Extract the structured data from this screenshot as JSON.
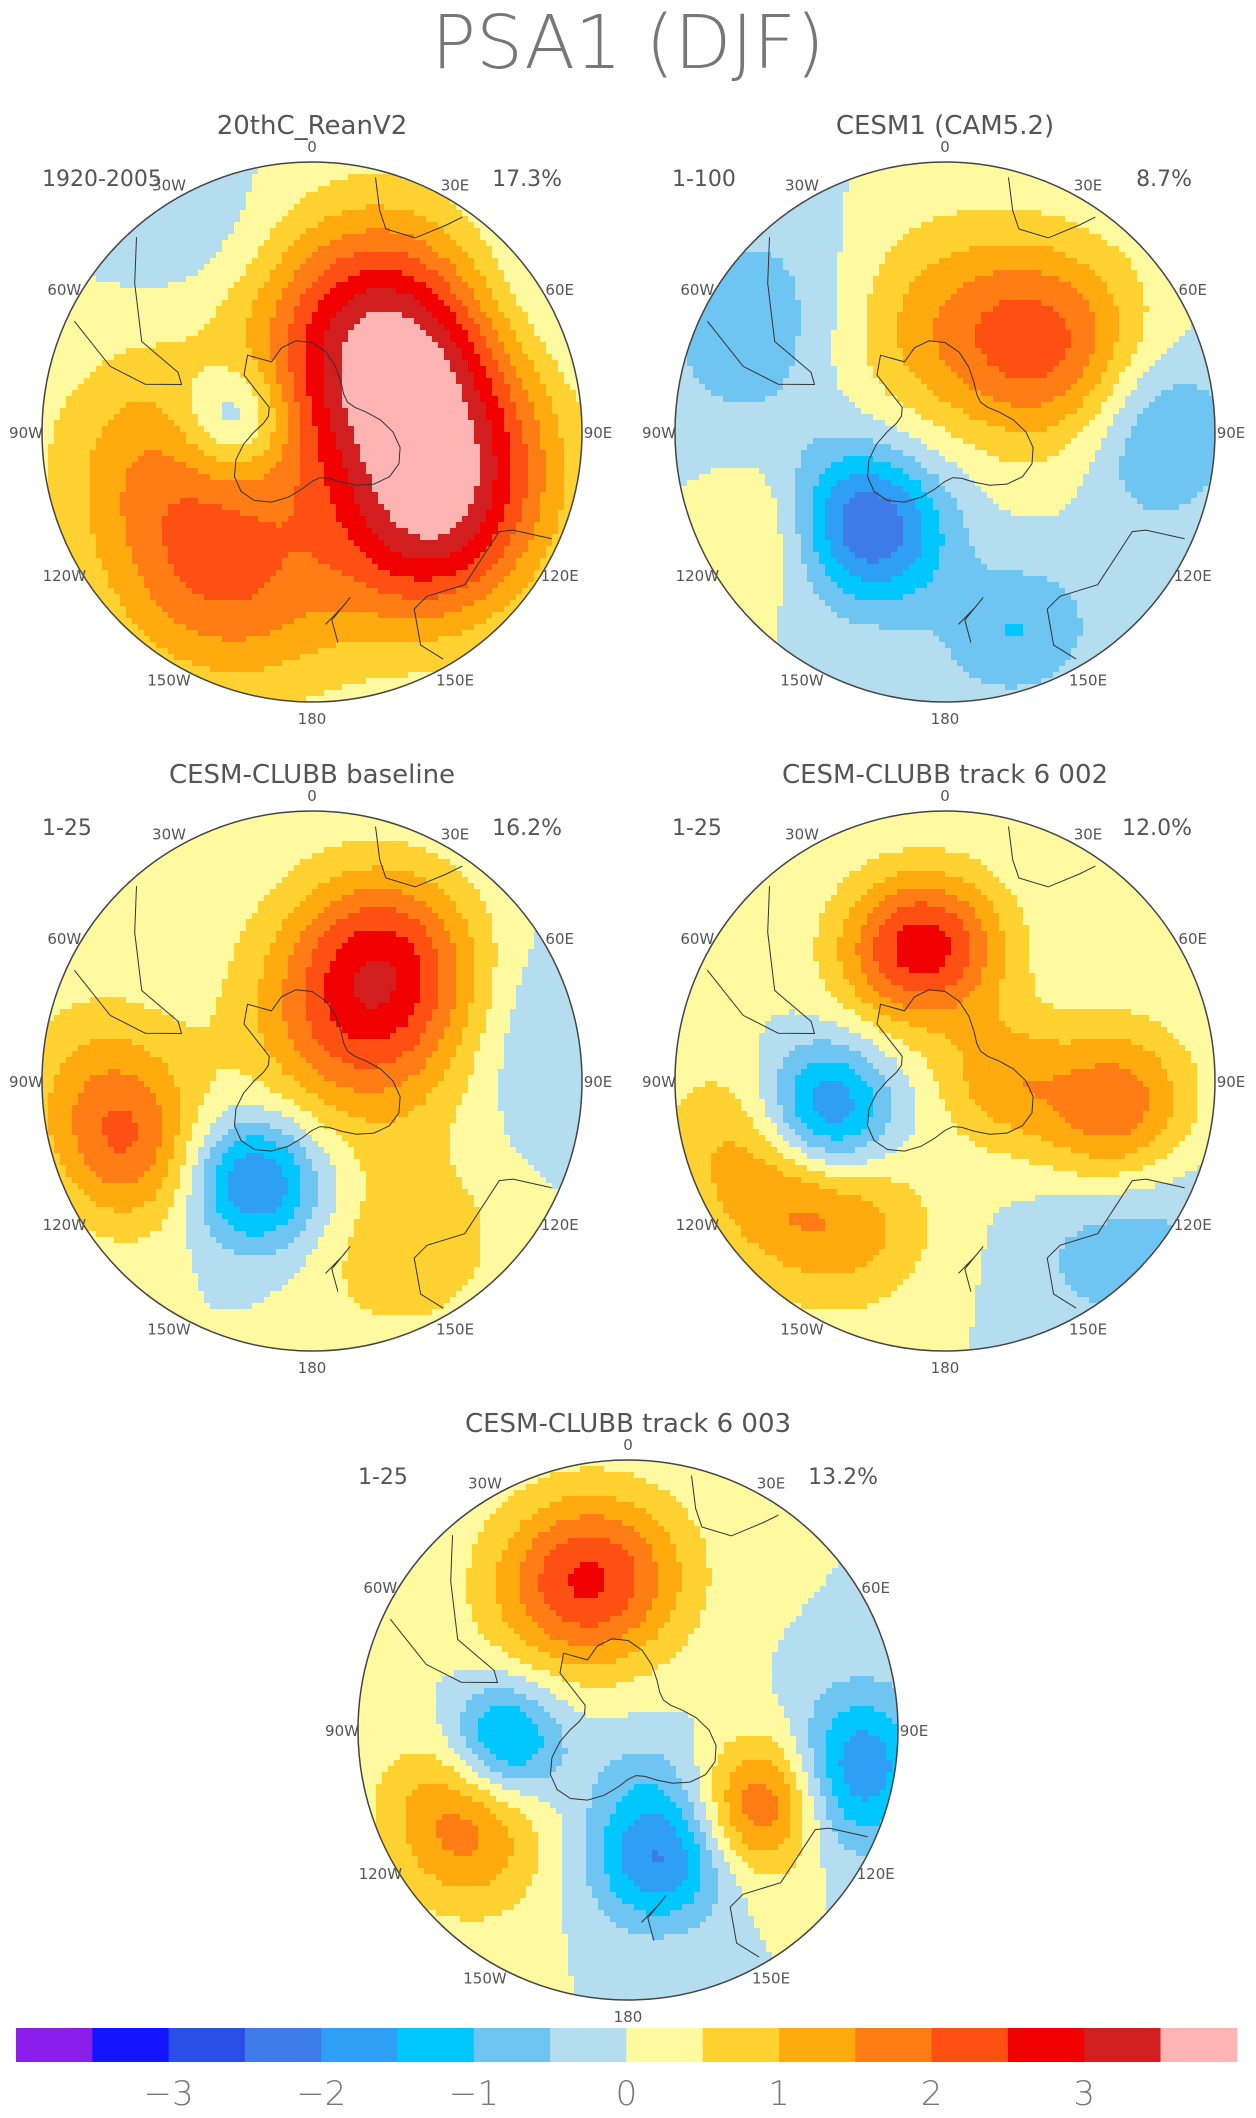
{
  "figure_title": "PSA1 (DJF)",
  "lon_labels": [
    "0",
    "30E",
    "60E",
    "90E",
    "120E",
    "150E",
    "180",
    "150W",
    "120W",
    "90W",
    "60W",
    "30W"
  ],
  "panels": [
    {
      "title": "20thC_ReanV2",
      "period": "1920-2005",
      "variance": "17.3%",
      "field": [
        {
          "lat": -82,
          "lon": 0,
          "amp": 0.6,
          "sig": 18
        },
        {
          "lat": -60,
          "lon": 90,
          "amp": 2.8,
          "sig": 22
        },
        {
          "lat": -55,
          "lon": 30,
          "amp": 2.4,
          "sig": 20
        },
        {
          "lat": -48,
          "lon": 130,
          "amp": 2.0,
          "sig": 18
        },
        {
          "lat": -45,
          "lon": -150,
          "amp": 1.8,
          "sig": 20
        },
        {
          "lat": -50,
          "lon": -100,
          "amp": 1.2,
          "sig": 20
        },
        {
          "lat": -70,
          "lon": -80,
          "amp": -1.6,
          "sig": 10
        },
        {
          "lat": -30,
          "lon": -30,
          "amp": -0.4,
          "sig": 14
        },
        {
          "lat": -25,
          "lon": 60,
          "amp": -0.6,
          "sig": 15
        }
      ]
    },
    {
      "title": "CESM1 (CAM5.2)",
      "period": "1-100",
      "variance": "8.7%",
      "field": [
        {
          "lat": -55,
          "lon": 50,
          "amp": 2.0,
          "sig": 18
        },
        {
          "lat": -62,
          "lon": -10,
          "amp": 1.0,
          "sig": 20
        },
        {
          "lat": -58,
          "lon": -140,
          "amp": -2.6,
          "sig": 14
        },
        {
          "lat": -40,
          "lon": -120,
          "amp": 0.8,
          "sig": 12
        },
        {
          "lat": -35,
          "lon": 90,
          "amp": -1.2,
          "sig": 14
        },
        {
          "lat": -35,
          "lon": 160,
          "amp": -1.0,
          "sig": 12
        },
        {
          "lat": -35,
          "lon": -60,
          "amp": -0.9,
          "sig": 18
        }
      ]
    },
    {
      "title": "CESM-CLUBB baseline",
      "period": "1-25",
      "variance": "16.2%",
      "field": [
        {
          "lat": -70,
          "lon": 40,
          "amp": 2.1,
          "sig": 20
        },
        {
          "lat": -50,
          "lon": 30,
          "amp": 1.6,
          "sig": 16
        },
        {
          "lat": -60,
          "lon": -150,
          "amp": -2.2,
          "sig": 12
        },
        {
          "lat": -40,
          "lon": -110,
          "amp": 1.6,
          "sig": 14
        },
        {
          "lat": -35,
          "lon": -90,
          "amp": 0.8,
          "sig": 16
        },
        {
          "lat": -40,
          "lon": 150,
          "amp": 0.9,
          "sig": 16
        },
        {
          "lat": -30,
          "lon": 80,
          "amp": -0.6,
          "sig": 16
        }
      ]
    },
    {
      "title": "CESM-CLUBB track 6 002",
      "period": "1-25",
      "variance": "12.0%",
      "field": [
        {
          "lat": -55,
          "lon": -10,
          "amp": 2.8,
          "sig": 14
        },
        {
          "lat": -58,
          "lon": -105,
          "amp": -2.4,
          "sig": 12
        },
        {
          "lat": -45,
          "lon": 100,
          "amp": 2.0,
          "sig": 14
        },
        {
          "lat": -45,
          "lon": -140,
          "amp": 1.4,
          "sig": 16
        },
        {
          "lat": -35,
          "lon": -110,
          "amp": 1.0,
          "sig": 16
        },
        {
          "lat": -75,
          "lon": 90,
          "amp": 1.2,
          "sig": 12
        },
        {
          "lat": -30,
          "lon": 130,
          "amp": -0.9,
          "sig": 16
        }
      ]
    },
    {
      "title": "CESM-CLUBB track 6 003",
      "period": "1-25",
      "variance": "13.2%",
      "field": [
        {
          "lat": -50,
          "lon": -15,
          "amp": 2.6,
          "sig": 16
        },
        {
          "lat": -58,
          "lon": -95,
          "amp": -1.9,
          "sig": 10
        },
        {
          "lat": -55,
          "lon": 165,
          "amp": -2.0,
          "sig": 12
        },
        {
          "lat": -50,
          "lon": 120,
          "amp": 2.1,
          "sig": 12
        },
        {
          "lat": -40,
          "lon": -120,
          "amp": 1.7,
          "sig": 14
        },
        {
          "lat": -30,
          "lon": 100,
          "amp": -2.0,
          "sig": 12
        },
        {
          "lat": -75,
          "lon": 160,
          "amp": -0.6,
          "sig": 12
        }
      ]
    }
  ],
  "colorbar": {
    "colors": [
      "#8c1eeb",
      "#1414ff",
      "#2a4ee8",
      "#3c7be8",
      "#2f9ff5",
      "#00c7ff",
      "#6ec5f2",
      "#b4def0",
      "#fff9a0",
      "#ffd232",
      "#ffaa0f",
      "#ff7d14",
      "#ff5014",
      "#f00000",
      "#d21e1e",
      "#ffb4b4"
    ],
    "ticks": [
      "−3",
      "−2",
      "−1",
      "0",
      "1",
      "2",
      "3"
    ],
    "levels": [
      -3.5,
      -3,
      -2.5,
      -2,
      -1.5,
      -1,
      -0.5,
      0,
      0.5,
      1,
      1.5,
      2,
      2.5,
      3,
      3.5
    ]
  }
}
